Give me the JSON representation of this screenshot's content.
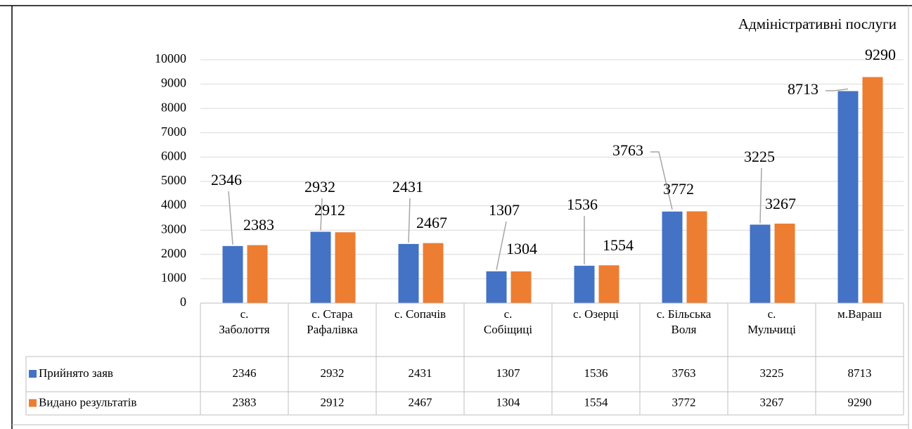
{
  "chart_data": {
    "type": "bar",
    "title": "Адміністративні послуги",
    "categories": [
      "с. Заболоття",
      "с. Стара Рафалівка",
      "с. Сопачів",
      "с. Собіщиці",
      "с. Озерці",
      "с. Більська Воля",
      "с. Мульчиці",
      "м.Вараш"
    ],
    "series": [
      {
        "name": "Прийнято заяв",
        "color": "#4472c4",
        "values": [
          2346,
          2932,
          2431,
          1307,
          1536,
          3763,
          3225,
          8713
        ]
      },
      {
        "name": "Видано результатів",
        "color": "#ed7d31",
        "values": [
          2383,
          2912,
          2467,
          1304,
          1554,
          3772,
          3267,
          9290
        ]
      }
    ],
    "ylim": [
      0,
      10000
    ],
    "yticks": [
      0,
      1000,
      2000,
      3000,
      4000,
      5000,
      6000,
      7000,
      8000,
      9000,
      10000
    ],
    "grid": true,
    "data_table": true
  }
}
